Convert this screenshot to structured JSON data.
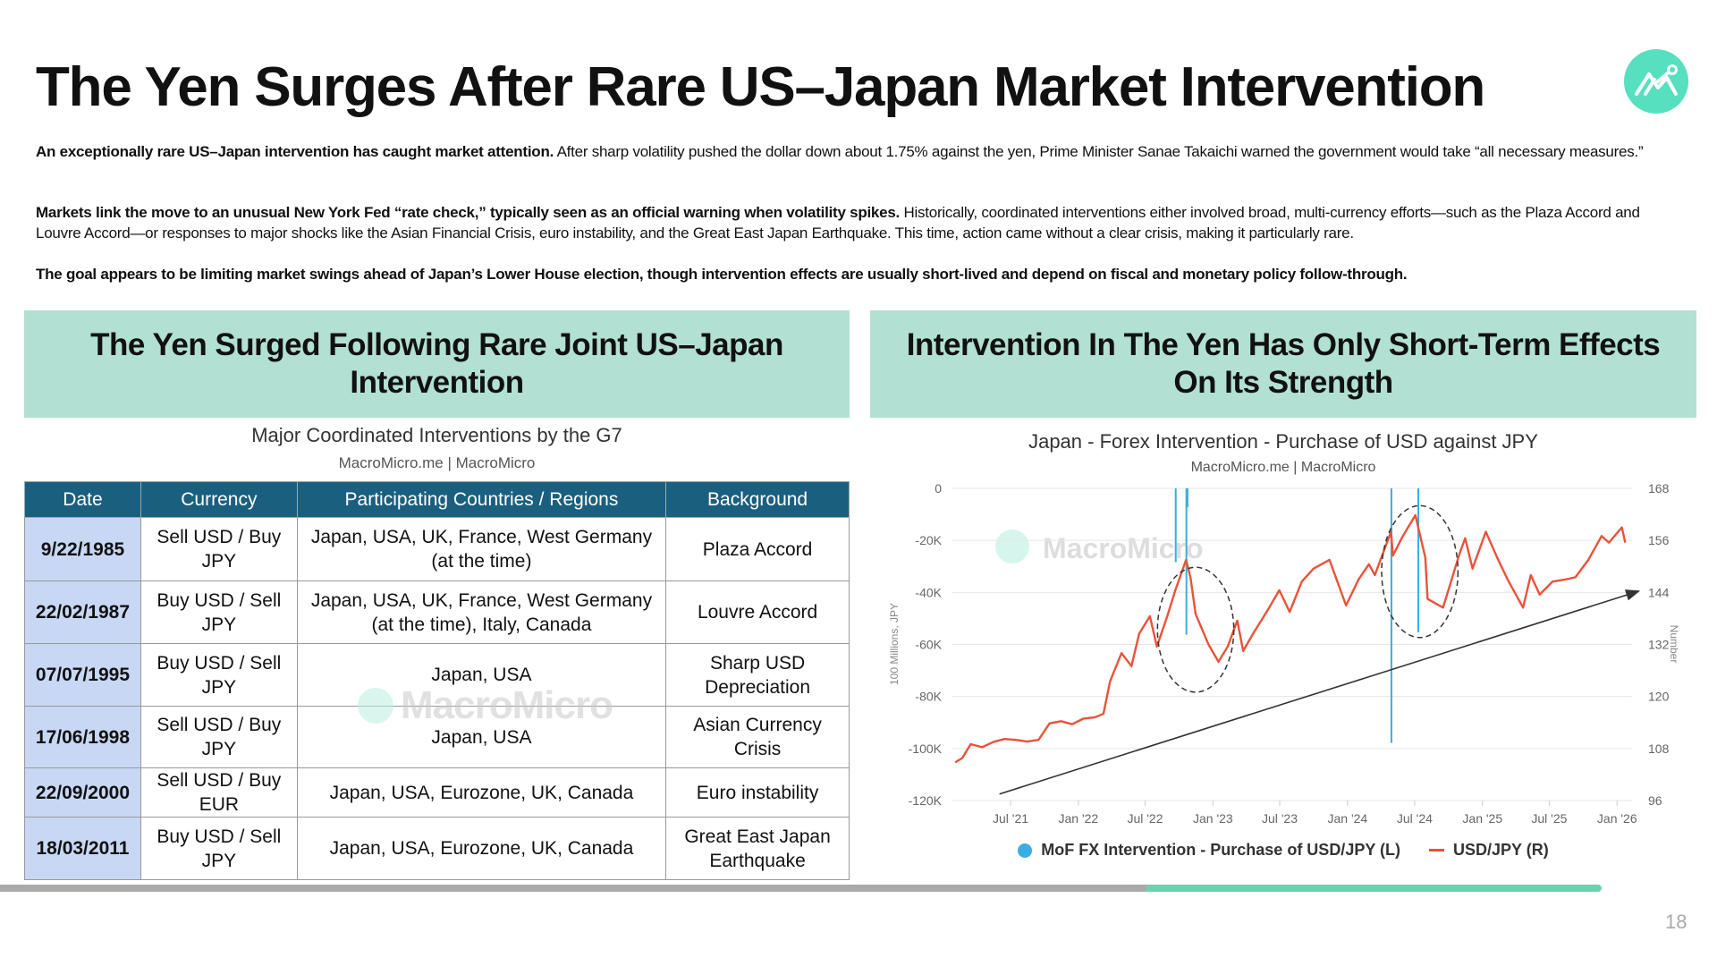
{
  "header": {
    "title": "The Yen Surges After Rare US–Japan Market Intervention",
    "logo_icon": "macromicro-logo-icon",
    "logo_color": "#56e0c0"
  },
  "paragraphs": [
    {
      "bold": "An exceptionally rare US–Japan intervention has caught market attention.",
      "text": " After sharp volatility pushed the dollar down about 1.75% against the yen, Prime Minister Sanae Takaichi warned the government would take “all necessary measures.”"
    },
    {
      "bold": "Markets link the move to an unusual New York Fed “rate check,” typically seen as an official warning when volatility spikes.",
      "text": " Historically, coordinated interventions either involved broad, multi-currency efforts—such as the Plaza Accord and Louvre Accord—or responses to major shocks like the Asian Financial Crisis, euro instability, and the Great East Japan Earthquake. This time, action came without a clear crisis, making it particularly rare."
    },
    {
      "bold": "The goal appears to be limiting market swings ahead of Japan’s Lower House election, though intervention effects are usually short-lived and depend on fiscal and monetary policy follow-through.",
      "text": ""
    }
  ],
  "left_panel": {
    "heading": "The Yen Surged Following Rare Joint US–Japan Intervention",
    "table_title": "Major Coordinated Interventions by the G7",
    "table_source": "MacroMicro.me | MacroMicro",
    "watermark": "MacroMicro",
    "columns": [
      "Date",
      "Currency",
      "Participating Countries / Regions",
      "Background"
    ],
    "rows": [
      [
        "9/22/1985",
        "Sell USD / Buy JPY",
        "Japan, USA, UK, France, West Germany (at the time)",
        "Plaza Accord"
      ],
      [
        "22/02/1987",
        "Buy USD / Sell JPY",
        "Japan, USA, UK, France, West Germany (at the time), Italy, Canada",
        "Louvre Accord"
      ],
      [
        "07/07/1995",
        "Buy USD / Sell JPY",
        "Japan, USA",
        "Sharp USD Depreciation"
      ],
      [
        "17/06/1998",
        "Sell USD / Buy JPY",
        "Japan, USA",
        "Asian Currency Crisis"
      ],
      [
        "22/09/2000",
        "Sell USD / Buy EUR",
        "Japan, USA, Eurozone, UK, Canada",
        "Euro instability"
      ],
      [
        "18/03/2011",
        "Buy USD / Sell JPY",
        "Japan, USA, Eurozone, UK, Canada",
        "Great East Japan Earthquake"
      ]
    ]
  },
  "right_panel": {
    "heading": "Intervention In The Yen Has Only Short-Term Effects On Its Strength"
  },
  "chart_data": {
    "type": "line",
    "title": "Japan - Forex Intervention - Purchase of USD against JPY",
    "subtitle": "MacroMicro.me | MacroMicro",
    "watermark": "MacroMicro",
    "ylabel_left": "100 Millions, JPY",
    "ylabel_right": "Number",
    "ylim_left": [
      -120000,
      0
    ],
    "ylim_right": [
      96,
      168
    ],
    "left_ticks": [
      "0",
      "-20K",
      "-40K",
      "-60K",
      "-80K",
      "-100K",
      "-120K"
    ],
    "right_ticks": [
      "168",
      "156",
      "144",
      "132",
      "120",
      "108",
      "96"
    ],
    "x_ticks": [
      {
        "label": "Jul '21",
        "date": "2021-07-01"
      },
      {
        "label": "Jan '22",
        "date": "2022-01-01"
      },
      {
        "label": "Jul '22",
        "date": "2022-07-01"
      },
      {
        "label": "Jan '23",
        "date": "2023-01-01"
      },
      {
        "label": "Jul '23",
        "date": "2023-07-01"
      },
      {
        "label": "Jan '24",
        "date": "2024-01-01"
      },
      {
        "label": "Jul '24",
        "date": "2024-07-01"
      },
      {
        "label": "Jan '25",
        "date": "2025-01-01"
      },
      {
        "label": "Jul '25",
        "date": "2025-07-01"
      },
      {
        "label": "Jan '26",
        "date": "2026-01-01"
      }
    ],
    "grid": true,
    "legend_position": "bottom",
    "series": [
      {
        "name": "MoF FX Intervention - Purchase of USD/JPY (L)",
        "type": "bar",
        "axis": "left",
        "color": "#3aaee0",
        "points": [
          {
            "date": "2022-09-22",
            "value": -28382
          },
          {
            "date": "2022-10-21",
            "value": -56202
          },
          {
            "date": "2022-10-24",
            "value": -7296
          },
          {
            "date": "2024-04-29",
            "value": -97885
          },
          {
            "date": "2024-07-11",
            "value": -55348
          }
        ]
      },
      {
        "name": "USD/JPY (R)",
        "type": "line",
        "axis": "right",
        "color": "#e8533a",
        "points": [
          [
            "2021-02-01",
            104.8
          ],
          [
            "2021-02-20",
            105.8
          ],
          [
            "2021-03-15",
            109.0
          ],
          [
            "2021-04-15",
            108.3
          ],
          [
            "2021-05-15",
            109.5
          ],
          [
            "2021-06-15",
            110.2
          ],
          [
            "2021-07-15",
            110.0
          ],
          [
            "2021-08-15",
            109.6
          ],
          [
            "2021-09-15",
            110.0
          ],
          [
            "2021-10-15",
            113.8
          ],
          [
            "2021-11-15",
            114.3
          ],
          [
            "2021-12-15",
            113.6
          ],
          [
            "2022-01-15",
            114.9
          ],
          [
            "2022-02-15",
            115.2
          ],
          [
            "2022-03-10",
            116.0
          ],
          [
            "2022-03-28",
            123.5
          ],
          [
            "2022-04-28",
            130.0
          ],
          [
            "2022-05-25",
            127.0
          ],
          [
            "2022-06-15",
            134.5
          ],
          [
            "2022-07-14",
            138.5
          ],
          [
            "2022-08-02",
            131.5
          ],
          [
            "2022-08-30",
            138.5
          ],
          [
            "2022-09-21",
            144.5
          ],
          [
            "2022-10-20",
            151.5
          ],
          [
            "2022-11-01",
            147.5
          ],
          [
            "2022-11-15",
            139.0
          ],
          [
            "2022-12-20",
            132.0
          ],
          [
            "2023-01-16",
            128.0
          ],
          [
            "2023-02-10",
            131.5
          ],
          [
            "2023-03-08",
            137.5
          ],
          [
            "2023-03-24",
            130.5
          ],
          [
            "2023-04-20",
            134.5
          ],
          [
            "2023-05-30",
            140.0
          ],
          [
            "2023-06-30",
            144.5
          ],
          [
            "2023-07-28",
            139.5
          ],
          [
            "2023-08-30",
            146.5
          ],
          [
            "2023-10-01",
            149.5
          ],
          [
            "2023-11-13",
            151.5
          ],
          [
            "2023-12-28",
            141.0
          ],
          [
            "2024-01-31",
            147.0
          ],
          [
            "2024-02-28",
            150.5
          ],
          [
            "2024-03-15",
            148.0
          ],
          [
            "2024-04-28",
            158.0
          ],
          [
            "2024-05-03",
            152.5
          ],
          [
            "2024-05-30",
            157.0
          ],
          [
            "2024-07-03",
            161.8
          ],
          [
            "2024-07-30",
            152.0
          ],
          [
            "2024-08-05",
            142.5
          ],
          [
            "2024-09-16",
            140.5
          ],
          [
            "2024-10-31",
            153.0
          ],
          [
            "2024-11-15",
            156.5
          ],
          [
            "2024-12-05",
            149.5
          ],
          [
            "2025-01-10",
            158.0
          ],
          [
            "2025-02-10",
            152.0
          ],
          [
            "2025-03-10",
            147.0
          ],
          [
            "2025-04-21",
            140.5
          ],
          [
            "2025-05-12",
            148.0
          ],
          [
            "2025-06-05",
            143.5
          ],
          [
            "2025-07-10",
            146.5
          ],
          [
            "2025-08-15",
            147.0
          ],
          [
            "2025-09-10",
            147.5
          ],
          [
            "2025-10-15",
            151.5
          ],
          [
            "2025-11-20",
            157.0
          ],
          [
            "2025-12-10",
            155.5
          ],
          [
            "2026-01-14",
            159.0
          ],
          [
            "2026-01-23",
            155.5
          ]
        ]
      }
    ],
    "annotations": [
      {
        "type": "arrow",
        "from": {
          "date": "2021-06-01",
          "value": 97.5
        },
        "to": {
          "date": "2026-03-01",
          "value": 144.3
        },
        "axis": "right",
        "color": "#333333"
      },
      {
        "type": "dashed-ellipse",
        "center": {
          "date": "2022-11-15",
          "value": 135.4
        },
        "half_width_months": 3.4,
        "half_height": 14.4,
        "axis": "right"
      },
      {
        "type": "dashed-ellipse",
        "center": {
          "date": "2024-07-15",
          "value": 148.8
        },
        "half_width_months": 3.4,
        "half_height": 15.2,
        "axis": "right"
      }
    ]
  },
  "footer": {
    "progress_fraction": 0.72,
    "page_number": "18"
  }
}
